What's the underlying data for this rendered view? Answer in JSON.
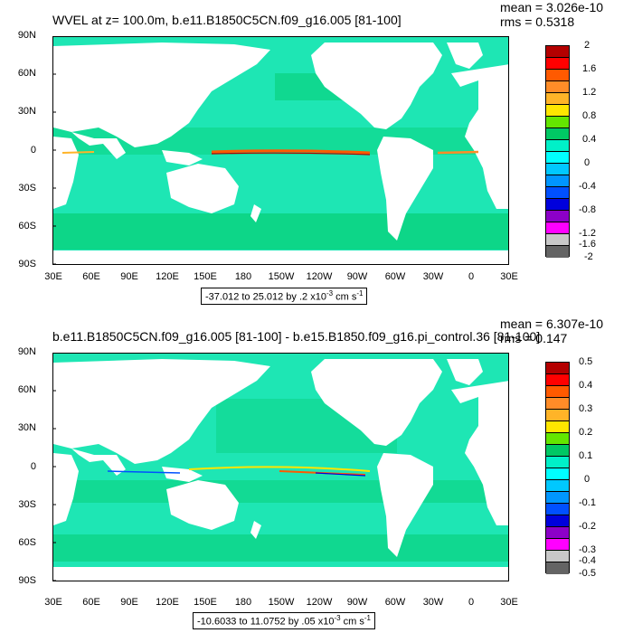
{
  "panels": [
    {
      "title": "WVEL at z= 100.0m, b.e11.B1850C5CN.f09_g16.005 [81-100]",
      "mean": "mean = 3.026e-10",
      "rms": "rms = 0.5318",
      "range_text": "-37.012 to 25.012 by .2 x10",
      "units_exp": "-3",
      "units": " cm s",
      "units_exp2": "-1",
      "colorbar_labels": [
        "2",
        "1.6",
        "1.2",
        "0.8",
        "0.4",
        "0",
        "-0.4",
        "-0.8",
        "-1.2",
        "-1.6",
        "-2"
      ]
    },
    {
      "title": "b.e11.B1850C5CN.f09_g16.005 [81-100] - b.e15.B1850.f09_g16.pi_control.36 [81-100]",
      "mean": "mean = 6.307e-10",
      "rms": "rms = 0.147",
      "range_text": "-10.6033 to 11.0752 by .05 x10",
      "units_exp": "-3",
      "units": " cm s",
      "units_exp2": "-1",
      "colorbar_labels": [
        "0.5",
        "0.4",
        "0.3",
        "0.2",
        "0.1",
        "0",
        "-0.1",
        "-0.2",
        "-0.3",
        "-0.4",
        "-0.5"
      ]
    }
  ],
  "lat_labels": [
    "90N",
    "60N",
    "30N",
    "0",
    "30S",
    "60S",
    "90S"
  ],
  "lon_labels": [
    "30E",
    "60E",
    "90E",
    "120E",
    "150E",
    "180",
    "150W",
    "120W",
    "90W",
    "60W",
    "30W",
    "0",
    "30E"
  ],
  "colorbar_colors": [
    "#b40000",
    "#ff0000",
    "#ff5a00",
    "#ff8c28",
    "#ffb428",
    "#ffe600",
    "#64e600",
    "#00c864",
    "#00f0c8",
    "#00ffff",
    "#00c8ff",
    "#0096ff",
    "#0050ff",
    "#0000dc",
    "#8c00c8",
    "#ff00ff",
    "#c8c8c8",
    "#646464"
  ],
  "colors": {
    "ocean": "#1ee6b4",
    "land": "#ffffff"
  }
}
